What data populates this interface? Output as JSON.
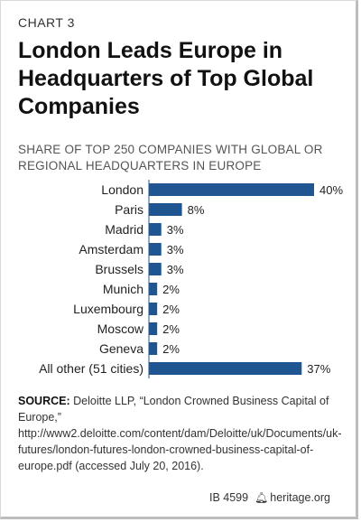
{
  "header": {
    "label": "CHART 3",
    "title": "London Leads Europe in Headquarters of Top Global Companies",
    "subtitle": "SHARE OF TOP 250 COMPANIES WITH GLOBAL OR REGIONAL HEADQUARTERS IN EUROPE"
  },
  "chart_data": {
    "type": "bar",
    "orientation": "horizontal",
    "title": "London Leads Europe in Headquarters of Top Global Companies",
    "subtitle": "SHARE OF TOP 250 COMPANIES WITH GLOBAL OR REGIONAL HEADQUARTERS IN EUROPE",
    "categories": [
      "London",
      "Paris",
      "Madrid",
      "Amsterdam",
      "Brussels",
      "Munich",
      "Luxembourg",
      "Moscow",
      "Geneva",
      "All other (51 cities)"
    ],
    "values": [
      40,
      8,
      3,
      3,
      3,
      2,
      2,
      2,
      2,
      37
    ],
    "value_labels": [
      "40%",
      "8%",
      "3%",
      "3%",
      "3%",
      "2%",
      "2%",
      "2%",
      "2%",
      "37%"
    ],
    "unit": "%",
    "xlim": [
      0,
      40
    ],
    "grid": false,
    "legend": "none",
    "bar_color": "#1f5591"
  },
  "source": {
    "label": "SOURCE:",
    "text": "Deloitte LLP, “London Crowned Business Capital of Europe,” http://www2.deloitte.com/content/dam/Deloitte/uk/Documents/uk-futures/london-futures-london-crowned-business-capital-of-europe.pdf (accessed July 20, 2016)."
  },
  "footer": {
    "id": "IB 4599",
    "bell_icon": "bell-icon",
    "site": "heritage.org"
  }
}
